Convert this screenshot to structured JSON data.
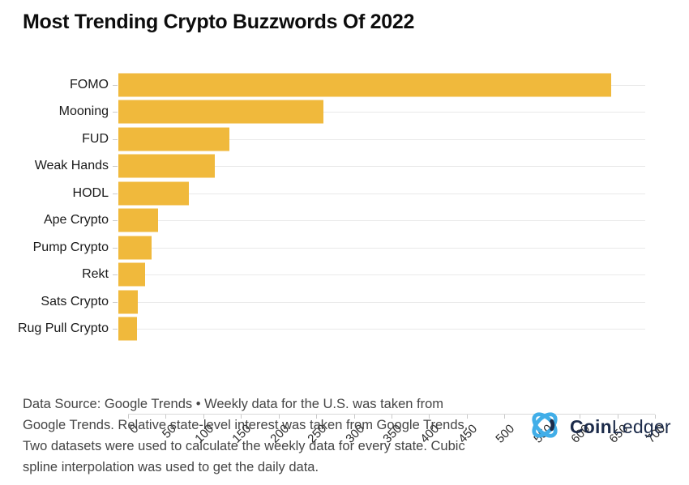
{
  "title": "Most Trending Crypto Buzzwords Of 2022",
  "chart_data": {
    "type": "bar",
    "orientation": "horizontal",
    "title": "Most Trending Crypto Buzzwords Of 2022",
    "categories": [
      "FOMO",
      "Mooning",
      "FUD",
      "Weak Hands",
      "HODL",
      "Ape Crypto",
      "Pump Crypto",
      "Rekt",
      "Sats Crypto",
      "Rug Pull Crypto"
    ],
    "values": [
      655,
      272,
      148,
      128,
      94,
      53,
      44,
      36,
      26,
      25
    ],
    "xlabel": "",
    "ylabel": "",
    "xlim": [
      0,
      700
    ],
    "xticks": [
      0,
      50,
      100,
      150,
      200,
      250,
      300,
      350,
      400,
      450,
      500,
      550,
      600,
      650,
      700
    ],
    "xtick_rotation": 45,
    "grid": "horizontal-per-category",
    "legend": "none",
    "bar_color": "#F0B93C"
  },
  "footer": {
    "source_text": "Data Source: Google Trends • Weekly data for the U.S. was taken from\nGoogle Trends. Relative state-level interest was taken from Google Trends.\nTwo datasets were used to calculate the weekly data for every state. Cubic\nspline interpolation was used to get the daily data."
  },
  "logo": {
    "coin": "Coin",
    "ledger": "Ledger",
    "icon": "coinledger-knot-icon",
    "icon_light_color": "#41AEE8",
    "icon_dark_color": "#1C2B4A",
    "text_color": "#1C2B4A"
  },
  "colors": {
    "background": "#ffffff",
    "bar": "#F0B93C",
    "gridline": "#e9e9e9",
    "axis_line": "#d9d9d9",
    "tick_label": "#2b2b2b",
    "category_label": "#1a1a1a",
    "title": "#0d0d0d",
    "footer_text": "#454545"
  }
}
